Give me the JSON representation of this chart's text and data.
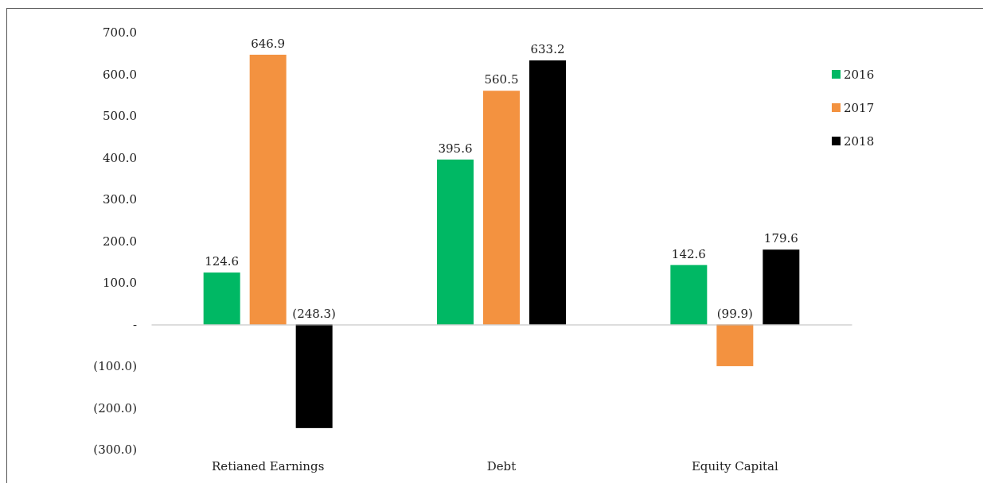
{
  "chart_data": {
    "type": "bar",
    "categories": [
      "Retianed Earnings",
      "Debt",
      "Equity Capital"
    ],
    "series": [
      {
        "name": "2016",
        "color": "#00b864",
        "values": [
          124.6,
          395.6,
          142.6
        ],
        "value_labels": [
          "124.6",
          "395.6",
          "142.6"
        ]
      },
      {
        "name": "2017",
        "color": "#f39240",
        "values": [
          646.9,
          560.5,
          -99.9
        ],
        "value_labels": [
          "646.9",
          "560.5",
          "(99.9)"
        ]
      },
      {
        "name": "2018",
        "color": "#000000",
        "values": [
          -248.3,
          633.2,
          179.6
        ],
        "value_labels": [
          "(248.3)",
          "633.2",
          "179.6"
        ]
      }
    ],
    "ylim": [
      -300,
      700
    ],
    "yticks": [
      {
        "value": -300,
        "label": "(300.0)"
      },
      {
        "value": -200,
        "label": "(200.0)"
      },
      {
        "value": -100,
        "label": "(100.0)"
      },
      {
        "value": 0,
        "label": "-"
      },
      {
        "value": 100,
        "label": "100.0"
      },
      {
        "value": 200,
        "label": "200.0"
      },
      {
        "value": 300,
        "label": "300.0"
      },
      {
        "value": 400,
        "label": "400.0"
      },
      {
        "value": 500,
        "label": "500.0"
      },
      {
        "value": 600,
        "label": "600.0"
      },
      {
        "value": 700,
        "label": "700.0"
      }
    ],
    "legend": "top right"
  }
}
